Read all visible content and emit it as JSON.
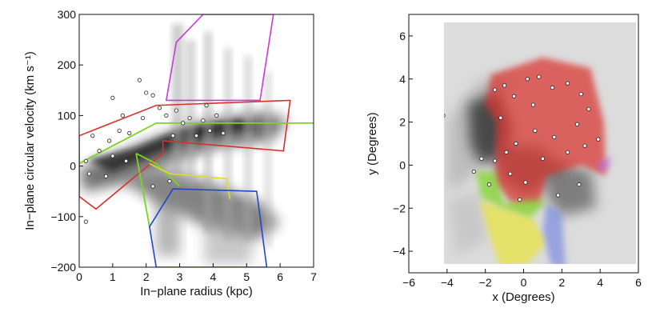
{
  "chart_data": [
    {
      "type": "scatter",
      "xlabel": "In−plane radius (kpc)",
      "ylabel": "In−plane circular velocity (km s⁻¹)",
      "xlim": [
        0,
        7
      ],
      "ylim": [
        -200,
        300
      ],
      "xticks": [
        "0",
        "1",
        "2",
        "3",
        "4",
        "5",
        "6",
        "7"
      ],
      "xtick_values": [
        0,
        1,
        2,
        3,
        4,
        5,
        6,
        7
      ],
      "yticks": [
        "−200",
        "−100",
        "0",
        "100",
        "200",
        "300"
      ],
      "ytick_values": [
        -200,
        -100,
        0,
        100,
        200,
        300
      ],
      "background": "grey density of in-plane velocities vs radius",
      "regions": [
        {
          "name": "red",
          "color": "#d8302c",
          "polygon": [
            [
              0,
              60
            ],
            [
              2.3,
              120
            ],
            [
              6.3,
              130
            ],
            [
              6.1,
              30
            ],
            [
              2.5,
              50
            ],
            [
              2.5,
              25
            ],
            [
              0.5,
              -85
            ],
            [
              0,
              -60
            ]
          ]
        },
        {
          "name": "green",
          "color": "#7dd420",
          "lines": [
            [
              [
                0,
                5
              ],
              [
                1,
                40
              ],
              [
                2.3,
                85
              ],
              [
                7,
                85
              ]
            ],
            [
              [
                1.7,
                25
              ],
              [
                2.3,
                5
              ],
              [
                3,
                -40
              ]
            ],
            [
              [
                1.7,
                25
              ],
              [
                2.1,
                -120
              ]
            ]
          ]
        },
        {
          "name": "magenta",
          "color": "#c83ad8",
          "polygon": [
            [
              2.6,
              130
            ],
            [
              2.9,
              245
            ],
            [
              3.7,
              300
            ],
            [
              5.8,
              300
            ],
            [
              5.4,
              130
            ]
          ]
        },
        {
          "name": "yellow",
          "color": "#e0dc2a",
          "polyline": [
            [
              2.1,
              5
            ],
            [
              2.7,
              -15
            ],
            [
              4.4,
              -25
            ],
            [
              4.5,
              -65
            ]
          ]
        },
        {
          "name": "blue",
          "color": "#2048c8",
          "polygon": [
            [
              2.1,
              -120
            ],
            [
              2.8,
              -45
            ],
            [
              5.3,
              -50
            ],
            [
              5.6,
              -200
            ],
            [
              2.3,
              -200
            ]
          ]
        }
      ],
      "points": [
        [
          0.2,
          10
        ],
        [
          0.4,
          60
        ],
        [
          0.6,
          30
        ],
        [
          0.9,
          50
        ],
        [
          1.0,
          135
        ],
        [
          1.2,
          70
        ],
        [
          1.3,
          100
        ],
        [
          1.5,
          65
        ],
        [
          1.8,
          170
        ],
        [
          1.9,
          95
        ],
        [
          2.0,
          145
        ],
        [
          2.2,
          140
        ],
        [
          2.4,
          115
        ],
        [
          2.6,
          100
        ],
        [
          2.8,
          60
        ],
        [
          2.9,
          110
        ],
        [
          3.1,
          85
        ],
        [
          3.3,
          95
        ],
        [
          3.5,
          60
        ],
        [
          3.7,
          90
        ],
        [
          3.9,
          70
        ],
        [
          4.1,
          100
        ],
        [
          4.3,
          65
        ],
        [
          0.3,
          -15
        ],
        [
          0.8,
          -20
        ],
        [
          0.2,
          -110
        ],
        [
          1.0,
          20
        ],
        [
          1.4,
          10
        ],
        [
          2.2,
          -40
        ],
        [
          2.7,
          -30
        ],
        [
          3.8,
          120
        ]
      ]
    },
    {
      "type": "scatter",
      "xlabel": "x (Degrees)",
      "ylabel": "y (Degrees)",
      "xlim": [
        -6,
        6
      ],
      "ylim": [
        -5,
        7
      ],
      "xticks": [
        "−6",
        "−4",
        "−2",
        "0",
        "2",
        "4",
        "6"
      ],
      "xtick_values": [
        -6,
        -4,
        -2,
        0,
        2,
        4,
        6
      ],
      "yticks": [
        "−4",
        "−2",
        "0",
        "2",
        "4",
        "6"
      ],
      "ytick_values": [
        -4,
        -2,
        0,
        2,
        4,
        6
      ],
      "background": "grey sky map with coloured regions",
      "regions": [
        {
          "name": "red",
          "color": "#d8302c",
          "polygon": [
            [
              -1.7,
              4.2
            ],
            [
              1.0,
              5.0
            ],
            [
              3.5,
              4.5
            ],
            [
              4.2,
              2.0
            ],
            [
              4.3,
              -0.5
            ],
            [
              3.0,
              0.0
            ],
            [
              1.2,
              -0.5
            ],
            [
              0.8,
              -1.8
            ],
            [
              -0.6,
              -1.8
            ],
            [
              -1.5,
              -0.8
            ],
            [
              -1.4,
              2.0
            ],
            [
              -2.0,
              2.8
            ]
          ]
        },
        {
          "name": "green",
          "color": "#7dd420",
          "polygon": [
            [
              -2.5,
              -0.3
            ],
            [
              -1.5,
              -0.3
            ],
            [
              -1.0,
              -1.8
            ],
            [
              0.5,
              -1.6
            ],
            [
              1.2,
              -1.7
            ],
            [
              0.3,
              -2.5
            ],
            [
              -1.2,
              -2.0
            ],
            [
              -2.2,
              -1.5
            ]
          ]
        },
        {
          "name": "yellow",
          "color": "#e8e33a",
          "polygon": [
            [
              -2.3,
              -1.6
            ],
            [
              -1.2,
              -2.0
            ],
            [
              0.5,
              -2.5
            ],
            [
              1.2,
              -3.6
            ],
            [
              0.2,
              -4.6
            ],
            [
              -1.2,
              -4.8
            ],
            [
              -1.8,
              -3.2
            ]
          ]
        },
        {
          "name": "blue",
          "color": "#7d8ee0",
          "polygon": [
            [
              1.2,
              -1.8
            ],
            [
              2.0,
              -2.2
            ],
            [
              2.2,
              -4.8
            ],
            [
              1.4,
              -4.6
            ],
            [
              1.0,
              -3.0
            ]
          ]
        },
        {
          "name": "magenta",
          "color": "#b86ce0",
          "polygon": [
            [
              3.9,
              0.1
            ],
            [
              4.6,
              0.4
            ],
            [
              4.4,
              -0.2
            ],
            [
              3.9,
              -0.3
            ]
          ]
        }
      ],
      "points": [
        [
          -4.2,
          2.3
        ],
        [
          -1.5,
          3.5
        ],
        [
          -1.0,
          3.7
        ],
        [
          -0.5,
          3.2
        ],
        [
          0.2,
          4.0
        ],
        [
          0.8,
          4.1
        ],
        [
          1.5,
          3.6
        ],
        [
          2.3,
          3.8
        ],
        [
          3.0,
          3.3
        ],
        [
          3.4,
          2.6
        ],
        [
          2.8,
          1.9
        ],
        [
          1.6,
          1.3
        ],
        [
          0.6,
          1.6
        ],
        [
          -0.4,
          1.0
        ],
        [
          -0.9,
          0.6
        ],
        [
          -1.5,
          0.2
        ],
        [
          -0.7,
          -0.4
        ],
        [
          0.1,
          -0.8
        ],
        [
          1.0,
          0.3
        ],
        [
          2.3,
          0.6
        ],
        [
          3.2,
          0.9
        ],
        [
          3.9,
          1.2
        ],
        [
          2.9,
          -0.9
        ],
        [
          1.8,
          -1.4
        ],
        [
          -2.2,
          0.3
        ],
        [
          -1.8,
          -0.9
        ],
        [
          -0.2,
          -1.6
        ],
        [
          -2.6,
          -0.3
        ],
        [
          0.5,
          2.8
        ],
        [
          -1.2,
          2.2
        ]
      ]
    }
  ]
}
